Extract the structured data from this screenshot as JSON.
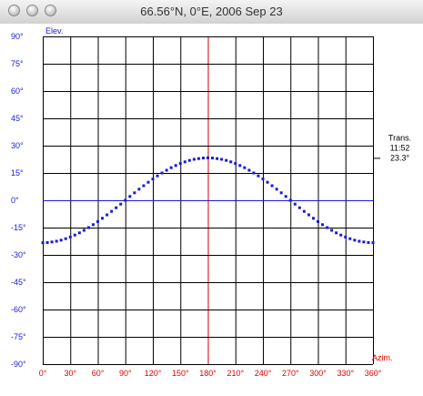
{
  "window": {
    "title": "66.56°N, 0°E, 2006 Sep 23",
    "buttons": [
      "close",
      "minimize",
      "zoom"
    ]
  },
  "chart_data": {
    "type": "scatter",
    "xlabel": "Azim.",
    "ylabel": "Elev.",
    "xlim": [
      0,
      360
    ],
    "ylim": [
      -90,
      90
    ],
    "xticks": [
      "0°",
      "30°",
      "60°",
      "90°",
      "120°",
      "150°",
      "180°",
      "210°",
      "240°",
      "270°",
      "300°",
      "330°",
      "360°"
    ],
    "yticks": [
      "90°",
      "75°",
      "60°",
      "45°",
      "30°",
      "15°",
      "0°",
      "-15°",
      "-30°",
      "-45°",
      "-60°",
      "-75°",
      "-90°"
    ],
    "yticks_values": [
      90,
      75,
      60,
      45,
      30,
      15,
      0,
      -15,
      -30,
      -45,
      -60,
      -75,
      -90
    ],
    "xticks_values": [
      0,
      30,
      60,
      90,
      120,
      150,
      180,
      210,
      240,
      270,
      300,
      330,
      360
    ],
    "grid": true,
    "horizon_line": 0,
    "meridian_line": 180,
    "colors": {
      "grid": "#000000",
      "points": "#1a1ad9",
      "horizon": "#1a1ad9",
      "meridian": "#d00000",
      "x_labels": "#e00000",
      "y_labels": "#1a1ad9"
    },
    "transit": {
      "label": "Trans.",
      "time": "11:52",
      "elevation": "23.3°",
      "elevation_value": 23.3
    },
    "series": [
      {
        "points": [
          [
            0,
            -23.3
          ],
          [
            5,
            -23.2
          ],
          [
            10,
            -22.9
          ],
          [
            15,
            -22.5
          ],
          [
            20,
            -21.9
          ],
          [
            25,
            -21.1
          ],
          [
            30,
            -20.2
          ],
          [
            35,
            -19.1
          ],
          [
            40,
            -17.9
          ],
          [
            45,
            -16.5
          ],
          [
            50,
            -15.0
          ],
          [
            55,
            -13.4
          ],
          [
            60,
            -11.7
          ],
          [
            65,
            -9.9
          ],
          [
            70,
            -8.0
          ],
          [
            75,
            -6.1
          ],
          [
            80,
            -4.1
          ],
          [
            85,
            -2.1
          ],
          [
            90,
            0.0
          ],
          [
            95,
            2.1
          ],
          [
            100,
            4.1
          ],
          [
            105,
            6.1
          ],
          [
            110,
            8.0
          ],
          [
            115,
            9.9
          ],
          [
            120,
            11.7
          ],
          [
            125,
            13.4
          ],
          [
            130,
            15.0
          ],
          [
            135,
            16.5
          ],
          [
            140,
            17.9
          ],
          [
            145,
            19.1
          ],
          [
            150,
            20.2
          ],
          [
            155,
            21.1
          ],
          [
            160,
            21.9
          ],
          [
            165,
            22.5
          ],
          [
            170,
            22.9
          ],
          [
            175,
            23.2
          ],
          [
            180,
            23.3
          ],
          [
            185,
            23.2
          ],
          [
            190,
            22.9
          ],
          [
            195,
            22.5
          ],
          [
            200,
            21.9
          ],
          [
            205,
            21.1
          ],
          [
            210,
            20.2
          ],
          [
            215,
            19.1
          ],
          [
            220,
            17.9
          ],
          [
            225,
            16.5
          ],
          [
            230,
            15.0
          ],
          [
            235,
            13.4
          ],
          [
            240,
            11.7
          ],
          [
            245,
            9.9
          ],
          [
            250,
            8.0
          ],
          [
            255,
            6.1
          ],
          [
            260,
            4.1
          ],
          [
            265,
            2.1
          ],
          [
            270,
            0.0
          ],
          [
            275,
            -2.1
          ],
          [
            280,
            -4.1
          ],
          [
            285,
            -6.1
          ],
          [
            290,
            -8.0
          ],
          [
            295,
            -9.9
          ],
          [
            300,
            -11.7
          ],
          [
            305,
            -13.4
          ],
          [
            310,
            -15.0
          ],
          [
            315,
            -16.5
          ],
          [
            320,
            -17.9
          ],
          [
            325,
            -19.1
          ],
          [
            330,
            -20.2
          ],
          [
            335,
            -21.1
          ],
          [
            340,
            -21.9
          ],
          [
            345,
            -22.5
          ],
          [
            350,
            -22.9
          ],
          [
            355,
            -23.2
          ],
          [
            360,
            -23.3
          ]
        ]
      }
    ]
  }
}
